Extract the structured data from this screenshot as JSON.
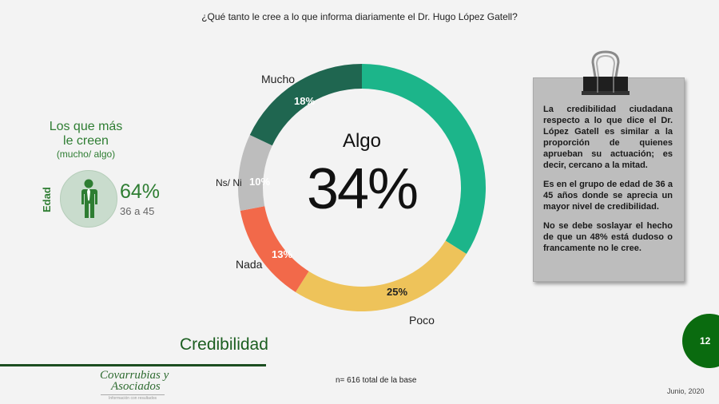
{
  "header": {
    "question": "¿Qué tanto le cree a lo que informa diariamente el Dr. Hugo López Gatell?"
  },
  "left_panel": {
    "title_line1": "Los que más",
    "title_line2": "le creen",
    "subtitle": "(mucho/ algo)",
    "axis_label": "Edad",
    "icon": "person-icon",
    "value": "64%",
    "group": "36 a 45"
  },
  "chart_data": {
    "type": "pie",
    "variant": "donut",
    "title": "¿Qué tanto le cree a lo que informa diariamente el Dr. Hugo López Gatell?",
    "categories": [
      "Algo",
      "Poco",
      "Nada",
      "Ns/ Ni",
      "Mucho"
    ],
    "values": [
      34,
      25,
      13,
      10,
      18
    ],
    "colors": [
      "#1cb58a",
      "#eec35a",
      "#f2694a",
      "#bdbdbd",
      "#1f6650"
    ],
    "start_angle": "12 o'clock",
    "direction": "clockwise",
    "center_label": "Algo",
    "center_value": "34%",
    "segments": [
      {
        "label": "Algo",
        "value": 34,
        "pct_text": "34%"
      },
      {
        "label": "Poco",
        "value": 25,
        "pct_text": "25%"
      },
      {
        "label": "Nada",
        "value": 13,
        "pct_text": "13%"
      },
      {
        "label": "Ns/ Ni",
        "value": 10,
        "pct_text": "10%"
      },
      {
        "label": "Mucho",
        "value": 18,
        "pct_text": "18%"
      }
    ]
  },
  "note": {
    "paragraphs": [
      "La credibilidad ciudadana respecto a lo que dice el Dr. López Gatell es similar a la proporción de quienes aprueban su actuación; es decir, cercano a la mitad.",
      "Es en el grupo de edad de 36 a 45 años donde se aprecia un mayor nivel de credibilidad.",
      "No se debe soslayar el hecho de que un 48% está dudoso o francamente no le cree."
    ],
    "icon": "binder-clip-icon"
  },
  "footer": {
    "section_title": "Credibilidad",
    "logo_line1": "Covarrubias y",
    "logo_line2": "Asociados",
    "logo_tagline": "Información con resultados",
    "base_note": "n= 616 total de la base",
    "page_number": "12",
    "date": "Junio, 2020"
  },
  "colors": {
    "brand_green": "#0a6b0f",
    "text_green": "#2e7d32",
    "note_bg": "#bdbdbd"
  }
}
